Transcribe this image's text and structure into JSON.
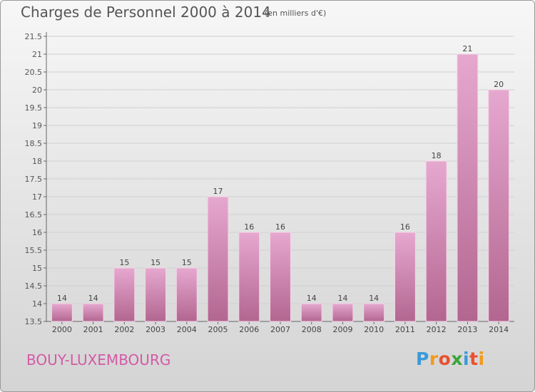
{
  "header": {
    "title": "Charges de Personnel 2000 à 2014",
    "subtitle": "(en milliers d'€)"
  },
  "footer": {
    "commune": "BOUY-LUXEMBOURG",
    "logo_text": "Proxiti",
    "logo_letters": [
      "P",
      "r",
      "o",
      "x",
      "i",
      "t",
      "i"
    ],
    "logo_colors": [
      "#3a9ad9",
      "#f39a1b",
      "#e8512f",
      "#3aa53a",
      "#3a9ad9",
      "#e8512f",
      "#f39a1b"
    ]
  },
  "colors": {
    "bar_light": "#e6a8cf",
    "bar_dark": "#b26690",
    "commune": "#d45aa6"
  },
  "chart_data": {
    "type": "bar",
    "categories": [
      "2000",
      "2001",
      "2002",
      "2003",
      "2004",
      "2005",
      "2006",
      "2007",
      "2008",
      "2009",
      "2010",
      "2011",
      "2012",
      "2013",
      "2014"
    ],
    "values": [
      14,
      14,
      15,
      15,
      15,
      17,
      16,
      16,
      14,
      14,
      14,
      16,
      18,
      21,
      20
    ],
    "data_labels": [
      "14",
      "14",
      "15",
      "15",
      "15",
      "17",
      "16",
      "16",
      "14",
      "14",
      "14",
      "16",
      "18",
      "21",
      "20"
    ],
    "title": "Charges de Personnel 2000 à 2014",
    "subtitle": "(en milliers d'€)",
    "xlabel": "",
    "ylabel": "",
    "ylim": [
      13.5,
      21.5
    ],
    "yticks": [
      13.5,
      14,
      14.5,
      15,
      15.5,
      16,
      16.5,
      17,
      17.5,
      18,
      18.5,
      19,
      19.5,
      20,
      20.5,
      21,
      21.5
    ],
    "ytick_labels": [
      "13.5",
      "14",
      "14.5",
      "15",
      "15.5",
      "16",
      "16.5",
      "17",
      "17.5",
      "18",
      "18.5",
      "19",
      "19.5",
      "20",
      "20.5",
      "21",
      "21.5"
    ],
    "grid": true
  }
}
